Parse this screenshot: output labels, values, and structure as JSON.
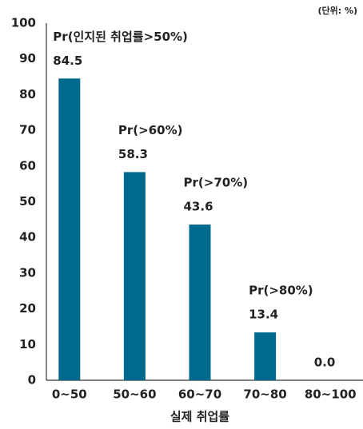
{
  "chart_data": {
    "type": "bar",
    "unit_note": "(단위: %)",
    "x_label": "실제 취업률",
    "categories": [
      "0~50",
      "50~60",
      "60~70",
      "70~80",
      "80~100"
    ],
    "values": [
      84.5,
      58.3,
      43.6,
      13.4,
      0
    ],
    "value_labels": [
      "84.5",
      "58.3",
      "43.6",
      "13.4",
      "0.0"
    ],
    "annotations": [
      "Pr(인지된 취업률>50%)",
      "Pr(>60%)",
      "Pr(>70%)",
      "Pr(>80%)"
    ],
    "color": "#006a8e",
    "ylim": [
      0,
      100
    ],
    "yticks": [
      0,
      10,
      20,
      30,
      40,
      50,
      60,
      70,
      80,
      90,
      100
    ],
    "grid": false
  }
}
